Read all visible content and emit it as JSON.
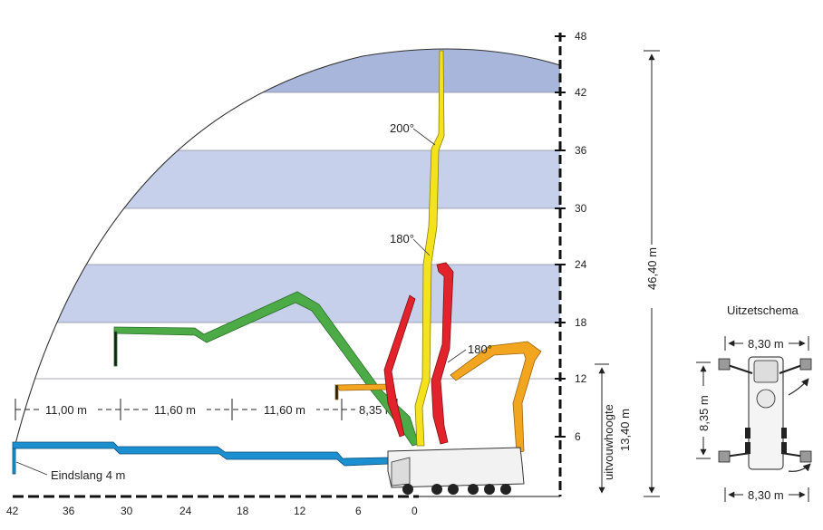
{
  "diagram": {
    "y_axis_ticks": [
      "6",
      "12",
      "18",
      "24",
      "30",
      "36",
      "42",
      "48"
    ],
    "x_axis_ticks": [
      "0",
      "6",
      "12",
      "18",
      "24",
      "30",
      "36",
      "42"
    ],
    "reach_segments": [
      "11,00 m",
      "11,60 m",
      "11,60 m",
      "8,35 m"
    ],
    "angle_labels": [
      "200°",
      "180°",
      "180°"
    ],
    "vertical_height_label": "46,40 m",
    "unfold_height_label_1": "uitvouwhoogte",
    "unfold_height_label_2": "13,40 m",
    "end_hose_label": "Eindslang 4 m",
    "colors": {
      "band": "#c7d0ea",
      "band_top": "#a9b6dc",
      "yellow": "#f4e31c",
      "red": "#e3232c",
      "green": "#4cab46",
      "blue": "#1c8fd0",
      "orange": "#f2a51f"
    }
  },
  "outrigger": {
    "title": "Uitzetschema",
    "top_width": "8,30 m",
    "side_length": "8,35 m",
    "bottom_width": "8,30 m"
  }
}
